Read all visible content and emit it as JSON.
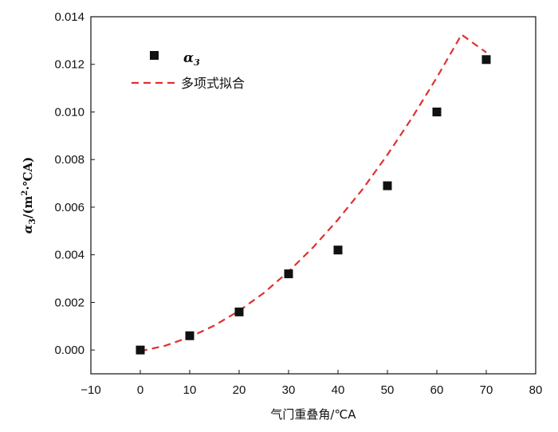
{
  "chart_data": {
    "type": "scatter",
    "xlabel": "气门重叠角/℃A",
    "ylabel": {
      "symbol": "α",
      "subscript": "3",
      "unit_open": "/(m",
      "unit_sup": "2",
      "unit_close": "·℃A)"
    },
    "xlim": [
      -10,
      80
    ],
    "ylim": [
      -0.001,
      0.014
    ],
    "x_ticks": [
      -10,
      0,
      10,
      20,
      30,
      40,
      50,
      60,
      70,
      80
    ],
    "x_tick_labels": [
      "−10",
      "0",
      "10",
      "20",
      "30",
      "40",
      "50",
      "60",
      "70",
      "80"
    ],
    "y_ticks": [
      0.0,
      0.002,
      0.004,
      0.006,
      0.008,
      0.01,
      0.012,
      0.014
    ],
    "y_tick_labels": [
      "0.000",
      "0.002",
      "0.004",
      "0.006",
      "0.008",
      "0.010",
      "0.012",
      "0.014"
    ],
    "grid": false,
    "legend_placement": "top-left",
    "series": [
      {
        "name": "α3",
        "marker": "square",
        "color": "#111111",
        "x": [
          0,
          10,
          20,
          30,
          40,
          50,
          60,
          70
        ],
        "y": [
          0.0,
          0.0006,
          0.0016,
          0.0032,
          0.0042,
          0.0069,
          0.01,
          0.0122
        ]
      },
      {
        "name": "多项式拟合",
        "style": "dashed-line",
        "color": "#e03030",
        "x": [
          0,
          5,
          10,
          15,
          20,
          25,
          30,
          35,
          40,
          45,
          50,
          55,
          60,
          65,
          70
        ],
        "y": [
          -5e-05,
          0.00018,
          0.00054,
          0.00103,
          0.00165,
          0.0024,
          0.0033,
          0.00432,
          0.00548,
          0.00676,
          0.0082,
          0.00976,
          0.01145,
          0.01325,
          0.0125
        ]
      }
    ],
    "legend": {
      "alpha_symbol": "α",
      "alpha_sub": "3",
      "fit_label": "多项式拟合"
    }
  }
}
